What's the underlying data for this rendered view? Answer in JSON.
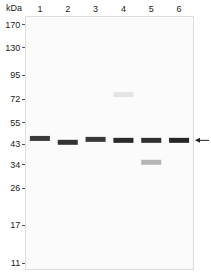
{
  "chart_data": {
    "type": "blot",
    "y_unit": "kDa",
    "categories": [
      "1",
      "2",
      "3",
      "4",
      "5",
      "6"
    ],
    "ylim": [
      10.3,
      185
    ],
    "yticks": [
      170,
      130,
      95,
      72,
      55,
      43,
      34,
      26,
      17,
      11
    ],
    "log": "y",
    "grid": false,
    "arrow": 45,
    "bands": [
      {
        "lane": "1",
        "value": 46,
        "color": "#3a3a3a"
      },
      {
        "lane": "2",
        "value": 44,
        "color": "#333333"
      },
      {
        "lane": "3",
        "value": 45.5,
        "color": "#383838"
      },
      {
        "lane": "4",
        "value": 45,
        "color": "#2a2a2a"
      },
      {
        "lane": "4",
        "value": 76,
        "color": "#e4e4e4"
      },
      {
        "lane": "5",
        "value": 45,
        "color": "#303030"
      },
      {
        "lane": "5",
        "value": 35,
        "color": "#b5b5b5"
      },
      {
        "lane": "6",
        "value": 45,
        "color": "#262626"
      }
    ]
  }
}
